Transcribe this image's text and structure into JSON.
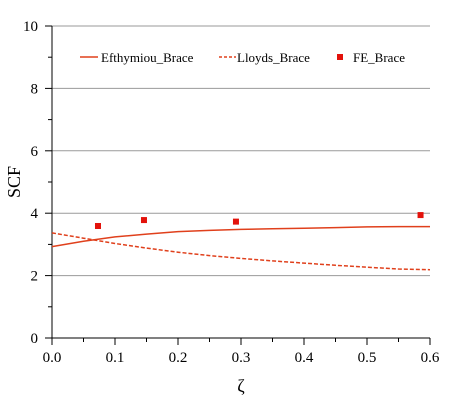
{
  "chart_data": {
    "type": "line",
    "title": "",
    "xlabel": "ζ",
    "ylabel": "SCF",
    "xlim": [
      0.0,
      0.6
    ],
    "ylim": [
      0,
      10
    ],
    "xticks": [
      0.0,
      0.1,
      0.2,
      0.3,
      0.4,
      0.5,
      0.6
    ],
    "yticks": [
      0,
      2,
      4,
      6,
      8,
      10
    ],
    "xtick_labels": [
      "0.0",
      "0.1",
      "0.2",
      "0.3",
      "0.4",
      "0.5",
      "0.6"
    ],
    "ytick_labels": [
      "0",
      "2",
      "4",
      "6",
      "8",
      "10"
    ],
    "grid": "horizontal",
    "legend_position": "top",
    "series": [
      {
        "name": "Efthymiou_Brace",
        "kind": "line",
        "style": "solid",
        "color": "#e0401c",
        "x": [
          0.0,
          0.05,
          0.1,
          0.15,
          0.2,
          0.25,
          0.3,
          0.35,
          0.4,
          0.45,
          0.5,
          0.55,
          0.6
        ],
        "y": [
          2.93,
          3.1,
          3.24,
          3.33,
          3.41,
          3.45,
          3.48,
          3.5,
          3.52,
          3.54,
          3.56,
          3.57,
          3.57
        ]
      },
      {
        "name": "Lloyds_Brace",
        "kind": "line",
        "style": "dashed",
        "color": "#e0401c",
        "x": [
          0.0,
          0.05,
          0.1,
          0.15,
          0.2,
          0.25,
          0.3,
          0.35,
          0.4,
          0.45,
          0.5,
          0.55,
          0.6
        ],
        "y": [
          3.37,
          3.2,
          3.03,
          2.88,
          2.75,
          2.64,
          2.55,
          2.47,
          2.4,
          2.33,
          2.27,
          2.21,
          2.19
        ]
      },
      {
        "name": "FE_Brace",
        "kind": "scatter",
        "marker": "square",
        "color": "#e3120b",
        "x": [
          0.073,
          0.146,
          0.292,
          0.585
        ],
        "y": [
          3.59,
          3.78,
          3.73,
          3.94
        ]
      }
    ]
  }
}
